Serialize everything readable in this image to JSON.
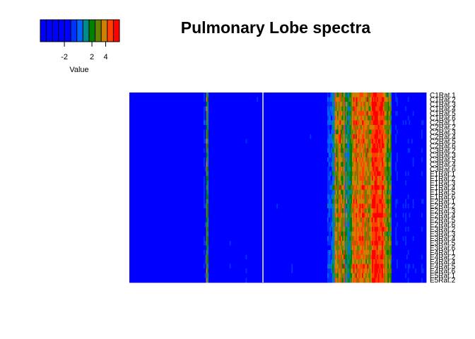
{
  "chart_data": {
    "type": "heatmap",
    "title": "Pulmonary Lobe spectra",
    "color_key": {
      "label": "Value",
      "ticks": [
        -2,
        2,
        4
      ],
      "range": [
        -5.5,
        6.0
      ],
      "bin_colors": [
        "#0000ff",
        "#0000ff",
        "#0000ff",
        "#0000ff",
        "#0000ff",
        "#0033ff",
        "#0066ff",
        "#008b8b",
        "#008000",
        "#668000",
        "#d08000",
        "#ff4000",
        "#ff0000"
      ]
    },
    "row_labels": [
      "C1Rat.1",
      "C1Rat.2",
      "C1Rat.3",
      "C1Rat.4",
      "C1Rat.5",
      "C1Rat.6",
      "C2Rat.1",
      "C2Rat.2",
      "C2Rat.3",
      "C2Rat.4",
      "C2Rat.5",
      "C2Rat.6",
      "C3Rat.2",
      "C3Rat.3",
      "C3Rat.5",
      "C3Rat.4",
      "C3Rat.6",
      "E1Rat.1",
      "E1Rat.2",
      "E1Rat.3",
      "E1Rat.4",
      "E1Rat.5",
      "E1Rat.6",
      "E2Rat.1",
      "E2Rat.2",
      "E2Rat.3",
      "E2Rat.4",
      "E2Rat.5",
      "E2Rat.6",
      "E3Rat.2",
      "E3Rat.3",
      "E3Rat.4",
      "E3Rat.5",
      "E3Rat.6",
      "E4Rat.1",
      "E4Rat.2",
      "E4Rat.4",
      "E4Rat.5",
      "E4Rat.6",
      "E5Rat.1",
      "E5Rat.2"
    ],
    "n_columns": 240,
    "column_gap_after": 108,
    "column_profile": [
      {
        "from": 0,
        "to": 60,
        "value": -3.5
      },
      {
        "from": 60,
        "to": 62,
        "value": -0.5
      },
      {
        "from": 62,
        "to": 64,
        "value": 2.5
      },
      {
        "from": 64,
        "to": 108,
        "value": -3.0
      },
      {
        "from": 108,
        "to": 160,
        "value": -3.0
      },
      {
        "from": 160,
        "to": 166,
        "value": 0.5
      },
      {
        "from": 166,
        "to": 174,
        "value": 3.5
      },
      {
        "from": 174,
        "to": 180,
        "value": 1.5
      },
      {
        "from": 180,
        "to": 196,
        "value": 4.0
      },
      {
        "from": 196,
        "to": 206,
        "value": 5.0
      },
      {
        "from": 206,
        "to": 212,
        "value": 2.5
      },
      {
        "from": 212,
        "to": 240,
        "value": -2.5
      }
    ]
  }
}
